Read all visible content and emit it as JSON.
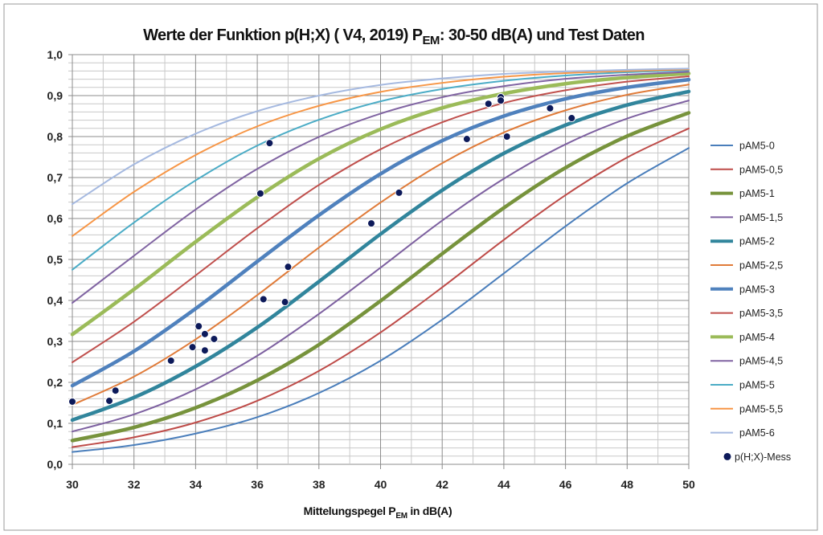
{
  "chart_data": {
    "type": "line",
    "title_parts": [
      "Werte der Funktion p(H;X) ( V4, 2019) P",
      "EM",
      ": 30-50 dB(A) und Test Daten"
    ],
    "xlabel_parts": [
      "Mittelungspegel P",
      "EM",
      " in dB(A)"
    ],
    "ylabel": "",
    "xlim": [
      30,
      50
    ],
    "ylim": [
      0,
      1
    ],
    "grid": true,
    "legend_position": "right",
    "x_ticks": [
      "30",
      "32",
      "34",
      "36",
      "38",
      "40",
      "42",
      "44",
      "46",
      "48",
      "50"
    ],
    "y_ticks": [
      "0,0",
      "0,1",
      "0,2",
      "0,3",
      "0,4",
      "0,5",
      "0,6",
      "0,7",
      "0,8",
      "0,9",
      "1,0"
    ],
    "x": [
      30,
      32,
      34,
      36,
      38,
      40,
      42,
      44,
      46,
      48,
      50
    ],
    "series": [
      {
        "name": "pAM5-0",
        "color": "#4a7ebb",
        "thick": false,
        "values": [
          0.03,
          0.047,
          0.075,
          0.115,
          0.174,
          0.253,
          0.353,
          0.466,
          0.581,
          0.686,
          0.772
        ]
      },
      {
        "name": "pAM5-0,5",
        "color": "#be4b48",
        "thick": false,
        "values": [
          0.042,
          0.066,
          0.102,
          0.155,
          0.228,
          0.322,
          0.432,
          0.548,
          0.657,
          0.749,
          0.82
        ]
      },
      {
        "name": "pAM5-1",
        "color": "#77933c",
        "thick": true,
        "values": [
          0.058,
          0.09,
          0.138,
          0.205,
          0.292,
          0.399,
          0.514,
          0.626,
          0.724,
          0.801,
          0.858
        ]
      },
      {
        "name": "pAM5-1,5",
        "color": "#7d60a0",
        "thick": false,
        "values": [
          0.08,
          0.122,
          0.183,
          0.265,
          0.367,
          0.48,
          0.595,
          0.697,
          0.781,
          0.844,
          0.888
        ]
      },
      {
        "name": "pAM5-2",
        "color": "#31859c",
        "thick": true,
        "values": [
          0.108,
          0.163,
          0.239,
          0.334,
          0.446,
          0.562,
          0.669,
          0.759,
          0.828,
          0.877,
          0.91
        ]
      },
      {
        "name": "pAM5-2,5",
        "color": "#e07b39",
        "thick": false,
        "values": [
          0.145,
          0.214,
          0.305,
          0.413,
          0.529,
          0.639,
          0.735,
          0.81,
          0.864,
          0.902,
          0.927
        ]
      },
      {
        "name": "pAM5-3",
        "color": "#4f81bd",
        "thick": true,
        "values": [
          0.192,
          0.276,
          0.38,
          0.495,
          0.608,
          0.709,
          0.79,
          0.85,
          0.892,
          0.92,
          0.939
        ]
      },
      {
        "name": "pAM5-3,5",
        "color": "#c0504d",
        "thick": false,
        "values": [
          0.249,
          0.348,
          0.461,
          0.576,
          0.682,
          0.769,
          0.835,
          0.882,
          0.913,
          0.934,
          0.947
        ]
      },
      {
        "name": "pAM5-4",
        "color": "#9bbb59",
        "thick": true,
        "values": [
          0.317,
          0.427,
          0.543,
          0.652,
          0.746,
          0.818,
          0.87,
          0.905,
          0.929,
          0.944,
          0.954
        ]
      },
      {
        "name": "pAM5-4,5",
        "color": "#8064a2",
        "thick": false,
        "values": [
          0.394,
          0.509,
          0.622,
          0.721,
          0.799,
          0.856,
          0.896,
          0.923,
          0.941,
          0.951,
          0.958
        ]
      },
      {
        "name": "pAM5-5",
        "color": "#4bacc6",
        "thick": false,
        "values": [
          0.475,
          0.59,
          0.693,
          0.778,
          0.841,
          0.886,
          0.916,
          0.936,
          0.949,
          0.957,
          0.962
        ]
      },
      {
        "name": "pAM5-5,5",
        "color": "#f79646",
        "thick": false,
        "values": [
          0.557,
          0.665,
          0.755,
          0.825,
          0.875,
          0.909,
          0.931,
          0.946,
          0.955,
          0.96,
          0.964
        ]
      },
      {
        "name": "pAM5-6",
        "color": "#a5b9e0",
        "thick": false,
        "values": [
          0.635,
          0.732,
          0.807,
          0.862,
          0.9,
          0.926,
          0.942,
          0.953,
          0.959,
          0.963,
          0.966
        ]
      }
    ],
    "scatter": {
      "name": "p(H;X)-Mess",
      "color": "#0d1a5a",
      "points": [
        [
          30.0,
          0.153
        ],
        [
          31.2,
          0.155
        ],
        [
          31.4,
          0.18
        ],
        [
          33.2,
          0.253
        ],
        [
          33.9,
          0.286
        ],
        [
          34.1,
          0.337
        ],
        [
          34.3,
          0.318
        ],
        [
          34.3,
          0.278
        ],
        [
          34.6,
          0.306
        ],
        [
          36.1,
          0.661
        ],
        [
          36.2,
          0.403
        ],
        [
          36.4,
          0.784
        ],
        [
          36.9,
          0.396
        ],
        [
          37.0,
          0.482
        ],
        [
          39.7,
          0.588
        ],
        [
          40.6,
          0.663
        ],
        [
          42.8,
          0.794
        ],
        [
          43.5,
          0.88
        ],
        [
          43.9,
          0.896
        ],
        [
          43.9,
          0.888
        ],
        [
          44.1,
          0.8
        ],
        [
          45.5,
          0.869
        ],
        [
          46.2,
          0.845
        ]
      ]
    }
  }
}
